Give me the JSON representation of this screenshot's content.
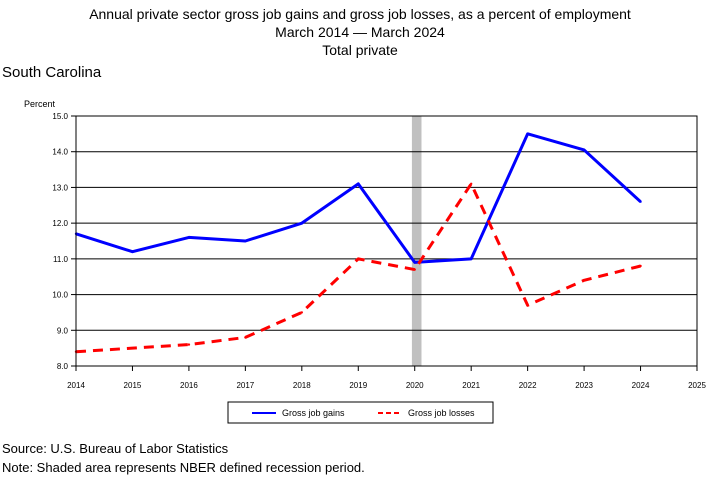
{
  "chart_data": {
    "type": "line",
    "title_lines": [
      "Annual private sector gross job gains and gross job losses, as a percent of employment",
      "March 2014 — March 2024",
      "Total private"
    ],
    "region": "South Carolina",
    "ylabel": "Percent",
    "ylim": [
      8.0,
      15.0
    ],
    "yticks": [
      "8.0",
      "9.0",
      "10.0",
      "11.0",
      "12.0",
      "13.0",
      "14.0",
      "15.0"
    ],
    "xlim": [
      2014,
      2025
    ],
    "xticks": [
      "2014",
      "2015",
      "2016",
      "2017",
      "2018",
      "2019",
      "2020",
      "2021",
      "2022",
      "2023",
      "2024",
      "2025"
    ],
    "grid": true,
    "legend_position": "bottom-center",
    "recession": {
      "from": 2019.95,
      "to": 2020.12,
      "color": "#c0c0c0"
    },
    "series": [
      {
        "name": "Gross job gains",
        "color": "#0000ff",
        "dash": "solid",
        "x": [
          2014,
          2015,
          2016,
          2017,
          2018,
          2019,
          2020,
          2021,
          2022,
          2023,
          2024
        ],
        "values": [
          11.7,
          11.2,
          11.6,
          11.5,
          12.0,
          13.1,
          10.9,
          11.0,
          14.5,
          14.05,
          12.6
        ]
      },
      {
        "name": "Gross job losses",
        "color": "#ff0000",
        "dash": "dashed",
        "x": [
          2014,
          2015,
          2016,
          2017,
          2018,
          2019,
          2020,
          2021,
          2022,
          2023,
          2024
        ],
        "values": [
          8.4,
          8.5,
          8.6,
          8.8,
          9.5,
          11.0,
          10.7,
          13.1,
          9.7,
          10.4,
          10.8
        ]
      }
    ]
  },
  "footer": {
    "source": "Source: U.S. Bureau of Labor Statistics",
    "note": "Note: Shaded area represents NBER defined recession period."
  }
}
